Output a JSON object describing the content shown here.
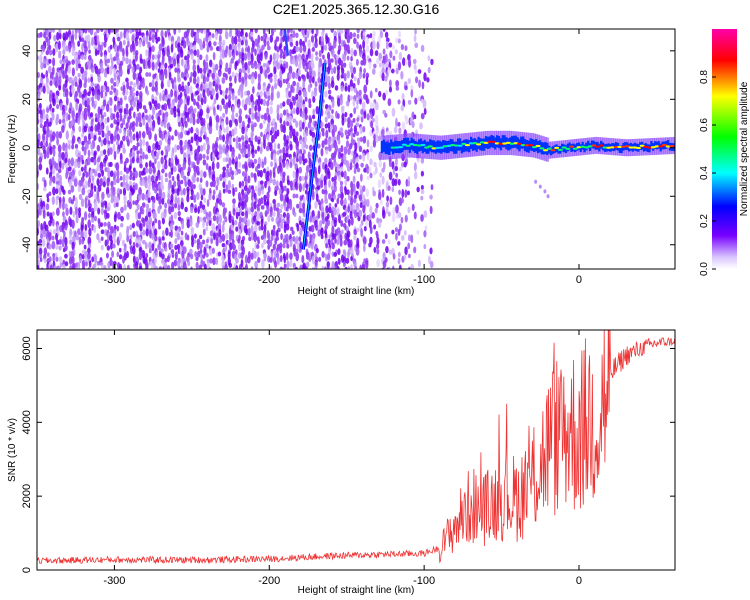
{
  "title": "C2E1.2025.365.12.30.G16",
  "chart_data": [
    {
      "type": "heatmap",
      "xlabel": "Height of straight line (km)",
      "ylabel": "Frequency (Hz)",
      "xlim": [
        -350,
        62
      ],
      "ylim": [
        -50,
        49
      ],
      "xticks": [
        "-300",
        "-200",
        "-100",
        "0"
      ],
      "xtick_values": [
        -300,
        -200,
        -100,
        0
      ],
      "yticks": [
        "-40",
        "-20",
        "0",
        "20",
        "40"
      ],
      "ytick_values": [
        -40,
        -20,
        0,
        20,
        40
      ],
      "colorbar": {
        "label": "Normalized spectral amplitude",
        "ticks": [
          "0.0",
          "0.2",
          "0.4",
          "0.6",
          "0.8"
        ],
        "tick_values": [
          0.0,
          0.2,
          0.4,
          0.6,
          0.8
        ],
        "range": [
          0,
          1
        ],
        "colormap": [
          "#ffffff",
          "#7700ff",
          "#0000ff",
          "#00ffff",
          "#00ff00",
          "#ffff00",
          "#ff0000",
          "#ff00aa"
        ]
      },
      "features": {
        "noise_region_x": [
          -350,
          -100
        ],
        "signal_band_x": [
          -128,
          62
        ],
        "signal_band_center_hz": [
          [
            -128,
            0
          ],
          [
            -110,
            1
          ],
          [
            -90,
            0
          ],
          [
            -75,
            1
          ],
          [
            -60,
            2
          ],
          [
            -45,
            2
          ],
          [
            -30,
            1
          ],
          [
            -20,
            -1
          ],
          [
            -5,
            0
          ],
          [
            10,
            1
          ],
          [
            30,
            0
          ],
          [
            62,
            1
          ]
        ],
        "diagonal_trace_points": [
          [
            -178,
            -42
          ],
          [
            -171,
            -5
          ],
          [
            -168,
            10
          ],
          [
            -164,
            35
          ]
        ]
      }
    },
    {
      "type": "line",
      "xlabel": "Height of straight line (km)",
      "ylabel": "SNR (10 * v/v)",
      "xlim": [
        -350,
        62
      ],
      "ylim": [
        0,
        6500
      ],
      "xticks": [
        "-300",
        "-200",
        "-100",
        "0"
      ],
      "xtick_values": [
        -300,
        -200,
        -100,
        0
      ],
      "yticks": [
        "0",
        "2000",
        "4000",
        "6000"
      ],
      "ytick_values": [
        0,
        2000,
        4000,
        6000
      ],
      "line_color": "#ee3333",
      "series_envelope": [
        [
          -350,
          250
        ],
        [
          -300,
          280
        ],
        [
          -250,
          270
        ],
        [
          -200,
          300
        ],
        [
          -160,
          380
        ],
        [
          -130,
          420
        ],
        [
          -100,
          450
        ],
        [
          -90,
          600
        ],
        [
          -80,
          1300
        ],
        [
          -70,
          1900
        ],
        [
          -60,
          1800
        ],
        [
          -50,
          2200
        ],
        [
          -40,
          2100
        ],
        [
          -30,
          2600
        ],
        [
          -20,
          3600
        ],
        [
          -10,
          4200
        ],
        [
          0,
          4000
        ],
        [
          10,
          4600
        ],
        [
          20,
          5300
        ],
        [
          30,
          5800
        ],
        [
          40,
          6000
        ],
        [
          50,
          6150
        ],
        [
          62,
          6200
        ]
      ]
    }
  ]
}
